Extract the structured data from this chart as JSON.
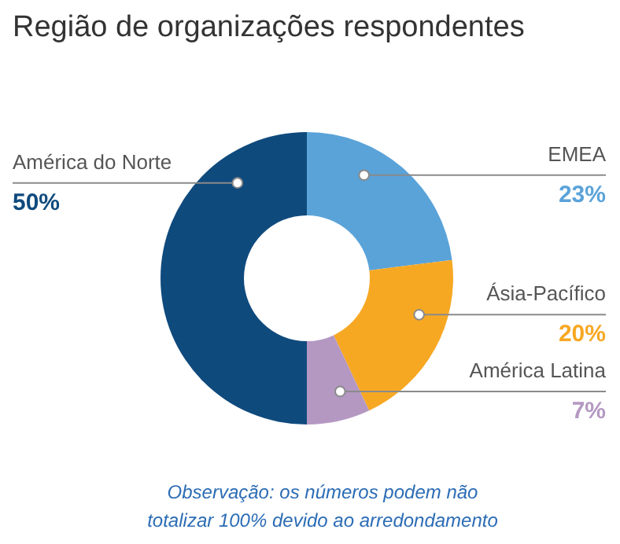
{
  "chart_data": {
    "type": "donut",
    "title": "Região de organizações respondentes",
    "categories": [
      "EMEA",
      "Ásia-Pacífico",
      "América Latina",
      "América do Norte"
    ],
    "values": [
      23,
      20,
      7,
      50
    ],
    "value_labels": [
      "23%",
      "20%",
      "7%",
      "50%"
    ],
    "colors": [
      "#5aa3d9",
      "#f7a823",
      "#b498c2",
      "#0f4a7d"
    ],
    "annotations": [
      "Observação: os números podem não totalizar 100% devido ao arredondamento"
    ]
  }
}
